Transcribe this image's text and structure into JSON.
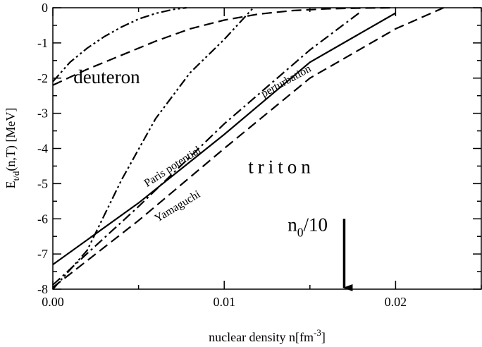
{
  "chart_data": {
    "type": "line",
    "xlabel": "nuclear density n[fm",
    "xlabel_sup": "-3",
    "xlabel_end": "]",
    "ylabel_main": "E",
    "ylabel_sub": "t/d",
    "ylabel_rest": "(n,T) [MeV]",
    "xlim": [
      0,
      0.025
    ],
    "ylim": [
      -8,
      0
    ],
    "x_ticks": [
      {
        "value": 0.0,
        "label": "0.00"
      },
      {
        "value": 0.01,
        "label": "0.01"
      },
      {
        "value": 0.02,
        "label": "0.02"
      }
    ],
    "x_minor_ticks": [
      0.005,
      0.015,
      0.025
    ],
    "y_ticks": [
      {
        "value": 0,
        "label": "0"
      },
      {
        "value": -1,
        "label": "-1"
      },
      {
        "value": -2,
        "label": "-2"
      },
      {
        "value": -3,
        "label": "-3"
      },
      {
        "value": -4,
        "label": "-4"
      },
      {
        "value": -5,
        "label": "-5"
      },
      {
        "value": -6,
        "label": "-6"
      },
      {
        "value": -7,
        "label": "-7"
      },
      {
        "value": -8,
        "label": "-8"
      }
    ],
    "series": [
      {
        "key": "triton-solid",
        "style": "solid",
        "points": [
          [
            0,
            -7.3
          ],
          [
            0.005,
            -5.55
          ],
          [
            0.01,
            -3.6
          ],
          [
            0.015,
            -1.55
          ],
          [
            0.02,
            -0.15
          ]
        ]
      },
      {
        "key": "triton-dashdot",
        "style": "dashdot",
        "points": [
          [
            0,
            -7.88
          ],
          [
            0.005,
            -5.65
          ],
          [
            0.01,
            -3.3
          ],
          [
            0.015,
            -1.2
          ],
          [
            0.018,
            -0.1
          ]
        ]
      },
      {
        "key": "triton-dashed",
        "style": "dashed",
        "points": [
          [
            0,
            -7.95
          ],
          [
            0.005,
            -6.05
          ],
          [
            0.01,
            -4.0
          ],
          [
            0.015,
            -2.0
          ],
          [
            0.02,
            -0.6
          ],
          [
            0.0228,
            0
          ]
        ]
      },
      {
        "key": "triton-dashdotdot",
        "style": "dashdotdot",
        "points": [
          [
            0,
            -8.0
          ],
          [
            0.002,
            -6.9
          ],
          [
            0.004,
            -4.9
          ],
          [
            0.006,
            -3.15
          ],
          [
            0.008,
            -1.85
          ],
          [
            0.01,
            -0.9
          ],
          [
            0.0117,
            0
          ]
        ]
      },
      {
        "key": "deuteron-dashdotdot",
        "style": "dashdotdot",
        "points": [
          [
            0,
            -2.1
          ],
          [
            0.001,
            -1.55
          ],
          [
            0.002,
            -1.15
          ],
          [
            0.003,
            -0.82
          ],
          [
            0.004,
            -0.55
          ],
          [
            0.005,
            -0.32
          ],
          [
            0.006,
            -0.16
          ],
          [
            0.007,
            -0.05
          ],
          [
            0.0078,
            0
          ]
        ]
      },
      {
        "key": "deuteron-dashed",
        "style": "dashed",
        "points": [
          [
            0,
            -2.2
          ],
          [
            0.002,
            -1.75
          ],
          [
            0.004,
            -1.35
          ],
          [
            0.006,
            -0.95
          ],
          [
            0.008,
            -0.6
          ],
          [
            0.01,
            -0.35
          ],
          [
            0.012,
            -0.18
          ],
          [
            0.014,
            -0.08
          ],
          [
            0.016,
            -0.03
          ],
          [
            0.018,
            -0.01
          ],
          [
            0.02,
            0
          ]
        ]
      }
    ],
    "annotations": [
      {
        "text": "deuteron",
        "x": 0.0012,
        "y": -2.15,
        "rotate": 0,
        "size": 27,
        "spacing": 0
      },
      {
        "text": "perturbation",
        "x": 0.0123,
        "y": -2.55,
        "rotate": -29,
        "size": 16,
        "spacing": 0
      },
      {
        "text": "Paris potential",
        "x": 0.0055,
        "y": -5.1,
        "rotate": -33,
        "size": 16,
        "spacing": 0
      },
      {
        "text": "Yamaguchi",
        "x": 0.0061,
        "y": -6.1,
        "rotate": -31,
        "size": 16,
        "spacing": 0
      },
      {
        "text": "triton",
        "x": 0.0114,
        "y": -4.7,
        "rotate": 0,
        "size": 27,
        "spacing": 6
      },
      {
        "text": "n",
        "sub": "0",
        "tail": "/10",
        "x": 0.0137,
        "y": -6.35,
        "rotate": 0,
        "size": 27,
        "spacing": 0
      }
    ],
    "marker": {
      "kind": "arrow",
      "x": 0.017,
      "y_from": -6.0,
      "y_to": -8.0
    }
  }
}
